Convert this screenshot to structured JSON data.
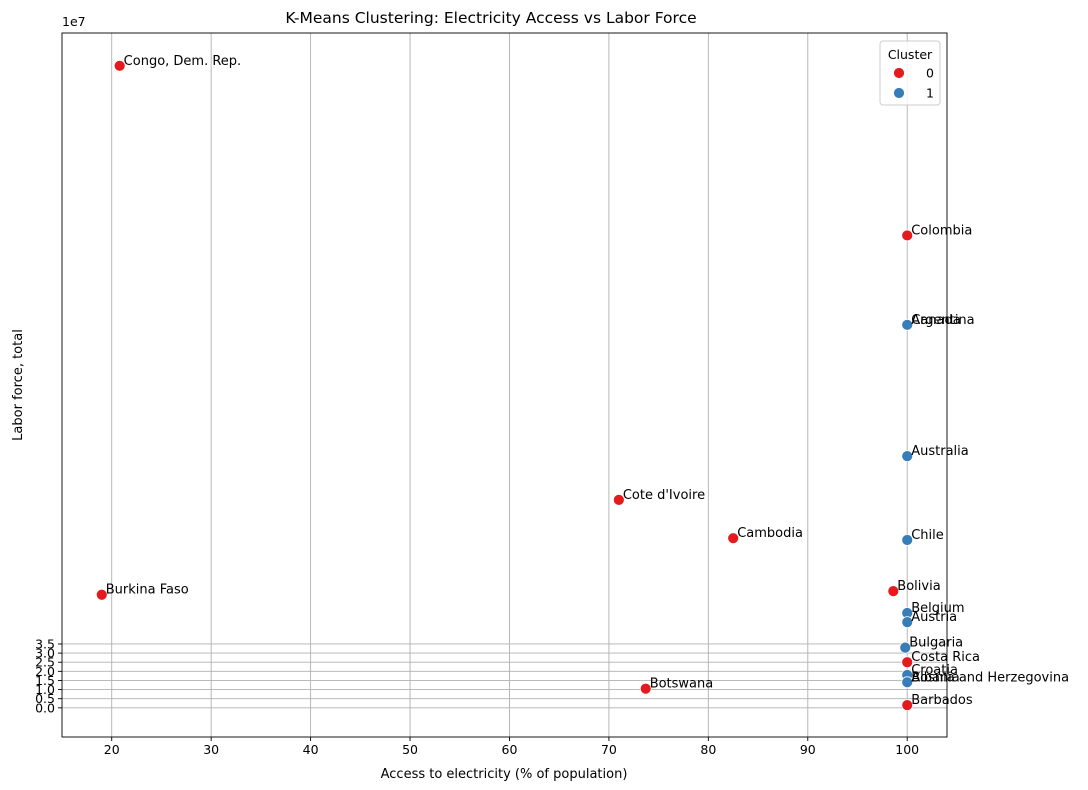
{
  "chart_data": {
    "type": "scatter",
    "title": "K-Means Clustering: Electricity Access vs Labor Force",
    "xlabel": "Access to electricity (% of population)",
    "ylabel": "Labor force, total",
    "y_offset_label": "1e7",
    "xlim": [
      15,
      104
    ],
    "ylim": [
      -1.6,
      37.0
    ],
    "x_ticks": [
      20,
      30,
      40,
      50,
      60,
      70,
      80,
      90,
      100
    ],
    "y_ticks": [
      0.0,
      0.5,
      1.0,
      1.5,
      2.0,
      2.5,
      3.0,
      3.5
    ],
    "y_tick_labels": [
      "0.0",
      "0.5",
      "1.0",
      "1.5",
      "2.0",
      "2.5",
      "3.0",
      "3.5"
    ],
    "grid": true,
    "legend": {
      "title": "Cluster",
      "placement": "top-right",
      "entries": [
        {
          "label": "0",
          "color": "#e41a1c"
        },
        {
          "label": "1",
          "color": "#377eb8"
        }
      ]
    },
    "colors": {
      "0": "#e41a1c",
      "1": "#377eb8"
    },
    "points": [
      {
        "label": "Congo, Dem. Rep.",
        "x": 20.8,
        "y": 35.2,
        "cluster": 0
      },
      {
        "label": "Colombia",
        "x": 100,
        "y": 25.9,
        "cluster": 0
      },
      {
        "label": "Argentina",
        "x": 100,
        "y": 21.0,
        "cluster": 1
      },
      {
        "label": "Canada",
        "x": 100,
        "y": 21.0,
        "cluster": 1
      },
      {
        "label": "Australia",
        "x": 100,
        "y": 13.8,
        "cluster": 1
      },
      {
        "label": "Cote d'Ivoire",
        "x": 71.0,
        "y": 11.4,
        "cluster": 0
      },
      {
        "label": "Cambodia",
        "x": 82.5,
        "y": 9.3,
        "cluster": 0
      },
      {
        "label": "Chile",
        "x": 100,
        "y": 9.2,
        "cluster": 1
      },
      {
        "label": "Bolivia",
        "x": 98.6,
        "y": 6.4,
        "cluster": 0
      },
      {
        "label": "Burkina Faso",
        "x": 19.0,
        "y": 6.2,
        "cluster": 0
      },
      {
        "label": "Belgium",
        "x": 100,
        "y": 5.2,
        "cluster": 1
      },
      {
        "label": "Austria",
        "x": 100,
        "y": 4.7,
        "cluster": 1
      },
      {
        "label": "Bulgaria",
        "x": 99.8,
        "y": 3.3,
        "cluster": 1
      },
      {
        "label": "Costa Rica",
        "x": 100,
        "y": 2.5,
        "cluster": 0
      },
      {
        "label": "Croatia",
        "x": 100,
        "y": 1.8,
        "cluster": 1
      },
      {
        "label": "Albania",
        "x": 100,
        "y": 1.4,
        "cluster": 1
      },
      {
        "label": "Bosnia and Herzegovina",
        "x": 100,
        "y": 1.4,
        "cluster": 1
      },
      {
        "label": "Botswana",
        "x": 73.7,
        "y": 1.05,
        "cluster": 0
      },
      {
        "label": "Barbados",
        "x": 100,
        "y": 0.15,
        "cluster": 0
      }
    ]
  }
}
